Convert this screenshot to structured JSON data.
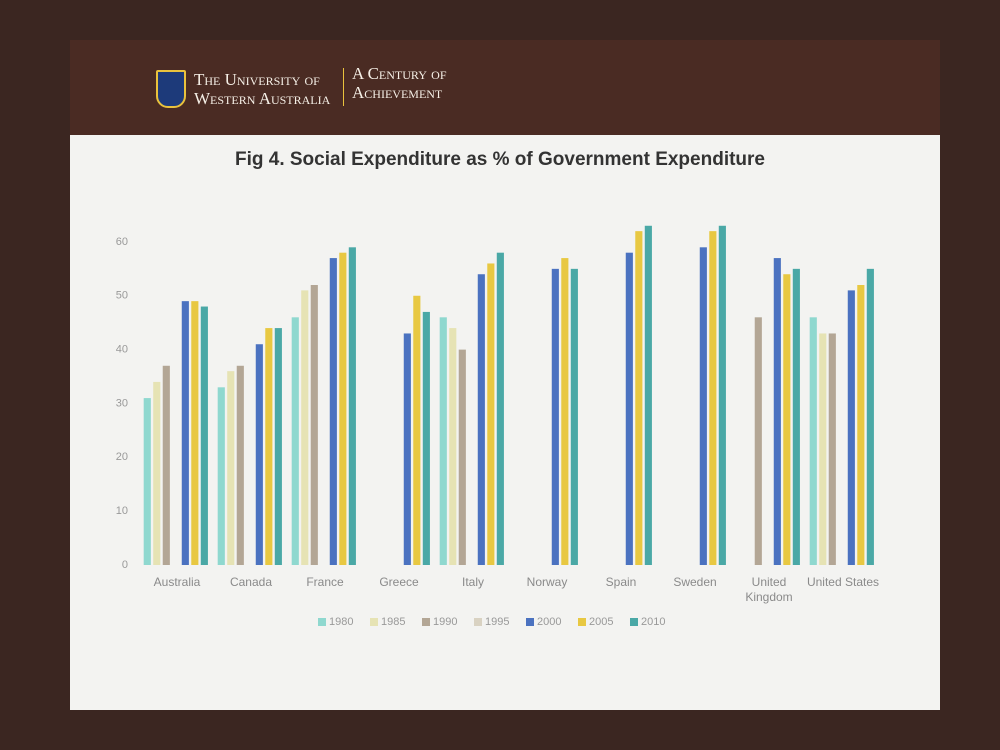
{
  "header": {
    "university": [
      "The University of",
      "Western Australia"
    ],
    "centenary": [
      "A Century of",
      "Achievement"
    ]
  },
  "chart_data": {
    "type": "bar",
    "title": "Fig 4. Social Expenditure as   % of Government Expenditure",
    "categories": [
      "Australia",
      "Canada",
      "France",
      "Greece",
      "Italy",
      "Norway",
      "Spain",
      "Sweden",
      "United Kingdom",
      "United States"
    ],
    "series": [
      {
        "name": "1980",
        "color": "#8fd8cf",
        "values": [
          31,
          33,
          46,
          null,
          46,
          null,
          null,
          null,
          null,
          46
        ]
      },
      {
        "name": "1985",
        "color": "#e6e3b4",
        "values": [
          34,
          36,
          51,
          null,
          44,
          null,
          null,
          null,
          null,
          43
        ]
      },
      {
        "name": "1990",
        "color": "#b3a695",
        "values": [
          37,
          37,
          52,
          null,
          40,
          null,
          null,
          null,
          46,
          43
        ]
      },
      {
        "name": "1995",
        "color": "#d9d2c2",
        "values": [
          null,
          null,
          null,
          null,
          null,
          null,
          null,
          null,
          null,
          null
        ]
      },
      {
        "name": "2000",
        "color": "#4b72c0",
        "values": [
          49,
          41,
          57,
          43,
          54,
          55,
          58,
          59,
          57,
          51
        ]
      },
      {
        "name": "2005",
        "color": "#e8c842",
        "values": [
          49,
          44,
          58,
          50,
          56,
          57,
          62,
          62,
          54,
          52
        ]
      },
      {
        "name": "2010",
        "color": "#4aa8a6",
        "values": [
          48,
          44,
          59,
          47,
          58,
          55,
          63,
          63,
          55,
          55
        ]
      }
    ],
    "ylim": [
      0,
      65
    ],
    "yticks": [
      0,
      10,
      20,
      30,
      40,
      50,
      60
    ],
    "grid": false,
    "legend": "bottom"
  }
}
